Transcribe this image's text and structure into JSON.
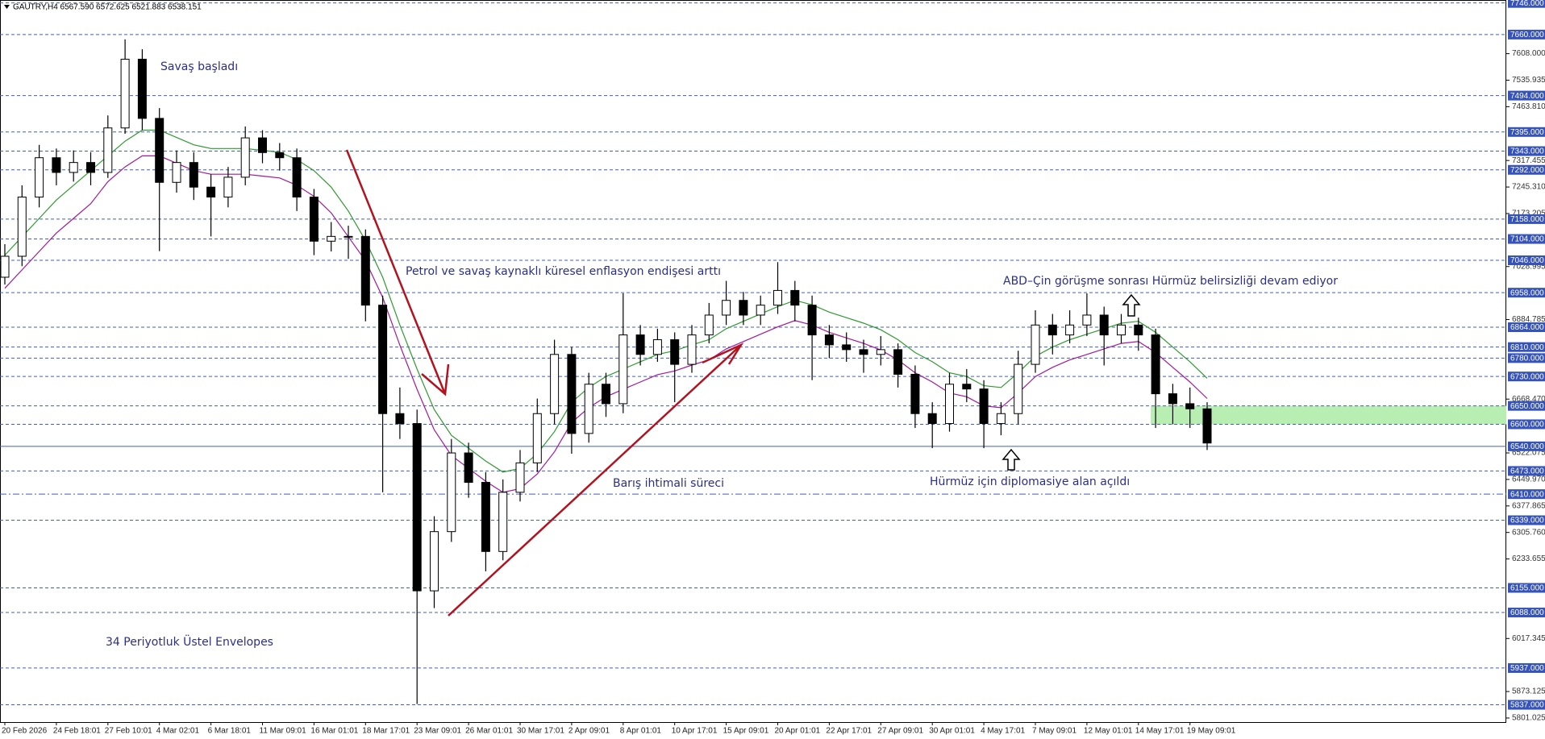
{
  "chart_data": {
    "type": "candlestick",
    "header": "GAUTRY,H4  6567.590 6572.625 6521.883 6538.151",
    "annotations": [
      "Savaş başladı",
      "Petrol ve savaş kaynaklı küresel enflasyon endişesi arttı",
      "Barış ihtimali süreci",
      "ABD–Çin görüşme sonrası Hürmüz belirsizliği devam ediyor",
      "Hürmüz için diplomasiye alan açıldı",
      "34 Periyotluk Üstel Envelopes"
    ],
    "categories": [
      "20 Feb 2026",
      null,
      null,
      "24 Feb 18:01",
      null,
      null,
      "27 Feb 10:01",
      null,
      null,
      "4 Mar 02:01",
      null,
      null,
      "6 Mar 18:01",
      null,
      null,
      "11 Mar 09:01",
      null,
      null,
      "16 Mar 01:01",
      null,
      null,
      "18 Mar 17:01",
      null,
      null,
      "23 Mar 09:01",
      null,
      null,
      "26 Mar 01:01",
      null,
      null,
      "30 Mar 17:01",
      null,
      null,
      "2 Apr 09:01",
      null,
      null,
      "8 Apr 01:01",
      null,
      null,
      "10 Apr 17:01",
      null,
      null,
      "15 Apr 09:01",
      null,
      null,
      "20 Apr 01:01",
      null,
      null,
      "22 Apr 17:01",
      null,
      null,
      "27 Apr 09:01",
      null,
      null,
      "30 Apr 01:01",
      null,
      null,
      "4 May 17:01",
      null,
      null,
      "7 May 09:01",
      null,
      null,
      "12 May 01:01",
      null,
      null,
      "14 May 17:01",
      null,
      null,
      "19 May 09:01",
      null
    ],
    "open": [
      7000,
      7057,
      7218,
      7325,
      7285,
      7312,
      7285,
      7406,
      7593,
      7432,
      7258,
      7312,
      7245,
      7218,
      7272,
      7379,
      7339,
      7325,
      7218,
      7098,
      7111,
      7111,
      6924,
      6629,
      6602,
      6147,
      6308,
      6522,
      6442,
      6254,
      6415,
      6495,
      6629,
      6790,
      6575,
      6709,
      6656,
      6843,
      6790,
      6830,
      6763,
      6843,
      6897,
      6937,
      6897,
      6924,
      6964,
      6924,
      6843,
      6816,
      6803,
      6790,
      6803,
      6736,
      6629,
      6602,
      6709,
      6696,
      6602,
      6629,
      6763,
      6870,
      6843,
      6870,
      6897,
      6843,
      6870,
      6843,
      6683,
      6656,
      6642
    ],
    "high": [
      7090,
      7250,
      7360,
      7350,
      7345,
      7340,
      7440,
      7647,
      7620,
      7460,
      7345,
      7340,
      7280,
      7300,
      7410,
      7400,
      7365,
      7350,
      7240,
      7150,
      7140,
      7130,
      6950,
      6700,
      6640,
      6350,
      6560,
      6550,
      6470,
      6450,
      6530,
      6670,
      6830,
      6810,
      6740,
      6740,
      6956,
      6870,
      6860,
      6850,
      6870,
      6930,
      6990,
      6960,
      6950,
      7041,
      6990,
      6950,
      6870,
      6850,
      6830,
      6840,
      6820,
      6760,
      6660,
      6740,
      6750,
      6720,
      6660,
      6800,
      6910,
      6900,
      6910,
      6956,
      6920,
      6900,
      6890,
      6860,
      6710,
      6700,
      6660
    ],
    "low": [
      6980,
      7030,
      7190,
      7250,
      7260,
      7250,
      7270,
      7390,
      7400,
      7071,
      7230,
      7210,
      7111,
      7190,
      7250,
      7310,
      7290,
      7180,
      7060,
      7070,
      7050,
      6880,
      6415,
      6560,
      5839,
      6100,
      6280,
      6400,
      6200,
      6230,
      6390,
      6470,
      6600,
      6520,
      6550,
      6620,
      6630,
      6760,
      6770,
      6660,
      6740,
      6820,
      6870,
      6870,
      6870,
      6900,
      6880,
      6720,
      6780,
      6770,
      6740,
      6760,
      6700,
      6590,
      6535,
      6580,
      6660,
      6535,
      6570,
      6600,
      6740,
      6790,
      6820,
      6840,
      6760,
      6820,
      6800,
      6590,
      6600,
      6590,
      6530
    ],
    "close": [
      7057,
      7218,
      7325,
      7285,
      7312,
      7285,
      7406,
      7593,
      7432,
      7258,
      7312,
      7245,
      7218,
      7272,
      7379,
      7339,
      7325,
      7218,
      7098,
      7111,
      7111,
      6924,
      6629,
      6602,
      6147,
      6308,
      6522,
      6442,
      6254,
      6415,
      6495,
      6629,
      6790,
      6575,
      6709,
      6656,
      6843,
      6790,
      6830,
      6763,
      6843,
      6897,
      6937,
      6897,
      6924,
      6964,
      6924,
      6843,
      6816,
      6803,
      6790,
      6803,
      6736,
      6629,
      6602,
      6709,
      6696,
      6602,
      6629,
      6763,
      6870,
      6843,
      6870,
      6897,
      6843,
      6870,
      6843,
      6683,
      6656,
      6642,
      6549
    ],
    "series": [
      {
        "color": "#2e9b2e",
        "values": [
          7060,
          7110,
          7160,
          7210,
          7250,
          7290,
          7330,
          7370,
          7400,
          7400,
          7380,
          7360,
          7350,
          7350,
          7350,
          7345,
          7340,
          7320,
          7290,
          7245,
          7180,
          7100,
          7000,
          6870,
          6750,
          6640,
          6570,
          6535,
          6500,
          6470,
          6480,
          6520,
          6580,
          6660,
          6700,
          6730,
          6750,
          6770,
          6790,
          6800,
          6816,
          6830,
          6860,
          6880,
          6900,
          6920,
          6937,
          6925,
          6905,
          6890,
          6875,
          6857,
          6830,
          6795,
          6770,
          6740,
          6730,
          6705,
          6700,
          6740,
          6785,
          6810,
          6830,
          6845,
          6860,
          6875,
          6880,
          6850,
          6810,
          6770,
          6725
        ]
      },
      {
        "color": "#a3189c",
        "values": [
          6970,
          7020,
          7070,
          7120,
          7160,
          7200,
          7260,
          7300,
          7330,
          7330,
          7310,
          7290,
          7280,
          7280,
          7280,
          7275,
          7270,
          7250,
          7220,
          7175,
          7110,
          7045,
          6945,
          6815,
          6695,
          6585,
          6515,
          6480,
          6445,
          6415,
          6425,
          6465,
          6525,
          6605,
          6645,
          6675,
          6695,
          6715,
          6735,
          6745,
          6761,
          6775,
          6805,
          6825,
          6845,
          6865,
          6882,
          6870,
          6850,
          6835,
          6820,
          6802,
          6775,
          6740,
          6715,
          6685,
          6675,
          6650,
          6645,
          6685,
          6730,
          6755,
          6775,
          6790,
          6805,
          6820,
          6825,
          6795,
          6755,
          6715,
          6670
        ]
      }
    ],
    "ylim": [
      5790,
      7754
    ],
    "yticks": [
      {
        "value": 7608,
        "label": "7608.000"
      },
      {
        "value": 7535.935,
        "label": "7535.935"
      },
      {
        "value": 7463.81,
        "label": "7463.810"
      },
      {
        "value": 7317.455,
        "label": "7317.455"
      },
      {
        "value": 7245.31,
        "label": "7245.310"
      },
      {
        "value": 7173.205,
        "label": "7173.205"
      },
      {
        "value": 7028.995,
        "label": "7028.995"
      },
      {
        "value": 6884.785,
        "label": "6884.785"
      },
      {
        "value": 6668.47,
        "label": "6668.470"
      },
      {
        "value": 6522.075,
        "label": "6522.075"
      },
      {
        "value": 6449.97,
        "label": "6449.970"
      },
      {
        "value": 6377.865,
        "label": "6377.865"
      },
      {
        "value": 6305.76,
        "label": "6305.760"
      },
      {
        "value": 6233.655,
        "label": "6233.655"
      },
      {
        "value": 6017.345,
        "label": "6017.345"
      },
      {
        "value": 5873.125,
        "label": "5873.125"
      },
      {
        "value": 5801.025,
        "label": "5801.025"
      }
    ],
    "levels": [
      {
        "value": 7746,
        "label": "7746.000",
        "style": "dash"
      },
      {
        "value": 7660,
        "label": "7660.000",
        "style": "dash"
      },
      {
        "value": 7494,
        "label": "7494.000",
        "style": "dash"
      },
      {
        "value": 7395,
        "label": "7395.000",
        "style": "dash"
      },
      {
        "value": 7343,
        "label": "7343.000",
        "style": "dash"
      },
      {
        "value": 7292,
        "label": "7292.000",
        "style": "dash"
      },
      {
        "value": 7158,
        "label": "7158.000",
        "style": "dash"
      },
      {
        "value": 7104,
        "label": "7104.000",
        "style": "dash"
      },
      {
        "value": 7046,
        "label": "7046.000",
        "style": "dash"
      },
      {
        "value": 6958,
        "label": "6958.000",
        "style": "dash"
      },
      {
        "value": 6864,
        "label": "6864.000",
        "style": "dash"
      },
      {
        "value": 6810,
        "label": "6810.000",
        "style": "dash"
      },
      {
        "value": 6780,
        "label": "6780.000",
        "style": "dash"
      },
      {
        "value": 6730,
        "label": "6730.000",
        "style": "dash"
      },
      {
        "value": 6650,
        "label": "6650.000",
        "style": "dash"
      },
      {
        "value": 6600,
        "label": "6600.000",
        "style": "dash"
      },
      {
        "value": 6540,
        "label": "6540.000",
        "style": "solid"
      },
      {
        "value": 6473,
        "label": "6473.000",
        "style": "dash"
      },
      {
        "value": 6410,
        "label": "6410.000",
        "style": "dashdot"
      },
      {
        "value": 6339,
        "label": "6339.000",
        "style": "dash"
      },
      {
        "value": 6155,
        "label": "6155.000",
        "style": "dash"
      },
      {
        "value": 6088,
        "label": "6088.000",
        "style": "dash"
      },
      {
        "value": 5937,
        "label": "5937.000",
        "style": "dash"
      },
      {
        "value": 5837,
        "label": "5837.000",
        "style": "dash"
      }
    ],
    "zone": {
      "low": 6600,
      "high": 6650,
      "color": "#b9eeb3"
    }
  }
}
